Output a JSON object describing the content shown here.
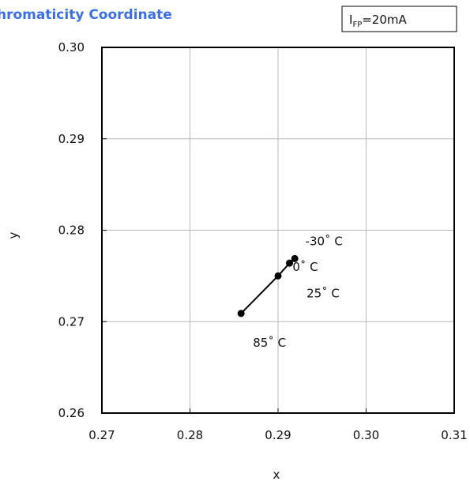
{
  "chart_data": {
    "type": "line",
    "title": "hromaticity Coordinate",
    "xlabel": "x",
    "ylabel": "y",
    "xlim": [
      0.27,
      0.31
    ],
    "ylim": [
      0.26,
      0.3
    ],
    "x_ticks": [
      "0.27",
      "0.28",
      "0.29",
      "0.30",
      "0.31"
    ],
    "y_ticks": [
      "0.26",
      "0.27",
      "0.28",
      "0.29",
      "0.30"
    ],
    "grid": true,
    "legend_box": {
      "main": "I",
      "sub": "FP",
      "rest": "=20mA"
    },
    "series": [
      {
        "x": [
          0.2919,
          0.2913,
          0.29,
          0.2858
        ],
        "y": [
          0.2769,
          0.2764,
          0.275,
          0.2709
        ],
        "point_labels": [
          "-30˚ C",
          "0˚ C",
          "25˚ C",
          "85˚ C"
        ]
      }
    ],
    "line_color": "#000000"
  }
}
